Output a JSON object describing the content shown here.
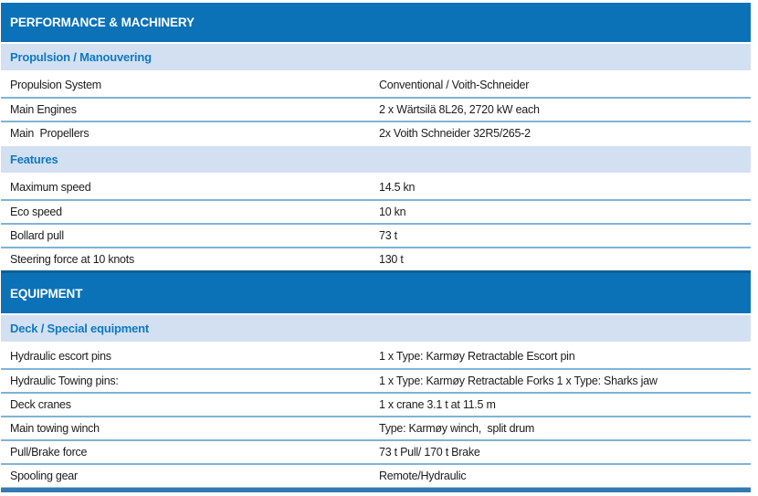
{
  "palette": {
    "bar_bg": "#0b72b8",
    "bar_text": "#ffffff",
    "band_bg": "#d3e0f1",
    "band_text": "#0e79c2",
    "row_text": "#1c1c1e",
    "divider": "#7fb3d6",
    "section_rule": "#0e6097",
    "bottom_bar": "#3579b1"
  },
  "sections": [
    {
      "title": "PERFORMANCE & MACHINERY",
      "groups": [
        {
          "heading": "Propulsion / Manouvering",
          "rows": [
            {
              "label": "Propulsion System",
              "value": "Conventional / Voith-Schneider"
            },
            {
              "label": "Main Engines",
              "value": "2 x Wärtsilä 8L26, 2720 kW each"
            },
            {
              "label": "Main  Propellers",
              "value": "2x Voith Schneider 32R5/265-2"
            }
          ]
        },
        {
          "heading": "Features",
          "rows": [
            {
              "label": "Maximum speed",
              "value": "14.5 kn"
            },
            {
              "label": "Eco speed",
              "value": "10 kn"
            },
            {
              "label": "Bollard pull",
              "value": "73 t"
            },
            {
              "label": "Steering force at 10 knots",
              "value": "130 t"
            }
          ]
        }
      ]
    },
    {
      "title": "EQUIPMENT",
      "groups": [
        {
          "heading": "Deck / Special equipment",
          "rows": [
            {
              "label": "Hydraulic escort pins",
              "value": "1 x Type: Karmøy Retractable Escort pin"
            },
            {
              "label": "Hydraulic Towing pins:",
              "value": "1 x Type: Karmøy Retractable Forks 1 x Type: Sharks jaw"
            },
            {
              "label": "Deck cranes",
              "value": "1 x crane 3.1 t at 11.5 m"
            },
            {
              "label": "Main towing winch",
              "value": "Type: Karmøy winch,  split drum"
            },
            {
              "label": "Pull/Brake force",
              "value": "73 t Pull/ 170 t Brake"
            },
            {
              "label": "Spooling gear",
              "value": "Remote/Hydraulic"
            }
          ]
        }
      ]
    }
  ]
}
